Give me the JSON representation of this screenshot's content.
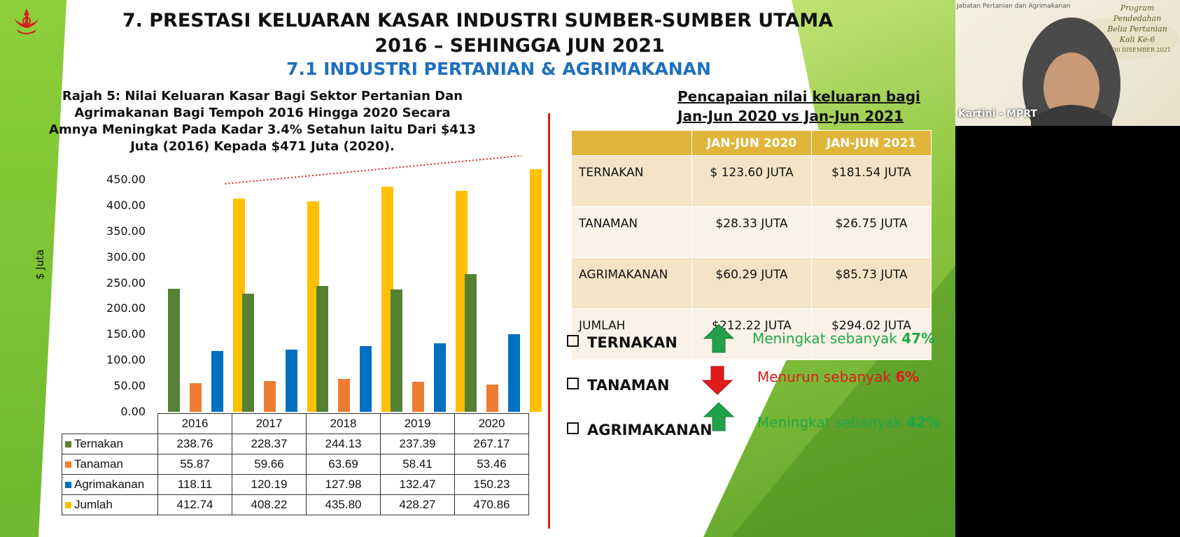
{
  "slide": {
    "title_line1": "7. PRESTASI KELUARAN KASAR INDUSTRI SUMBER-SUMBER UTAMA",
    "title_line2": "2016 – SEHINGGA JUN 2021",
    "subtitle": "7.1 INDUSTRI PERTANIAN & AGRIMAKANAN",
    "caption": "Rajah 5: Nilai Keluaran Kasar Bagi Sektor Pertanian Dan Agrimakanan Bagi Tempoh 2016 Hingga 2020 Secara Amnya Meningkat Pada Kadar 3.4% Setahun Iaitu Dari $413 Juta (2016) Kepada $471 Juta (2020)."
  },
  "chart_data": {
    "type": "bar",
    "ylabel": "$ Juta",
    "ylim": [
      0,
      500
    ],
    "yticks": [
      "0.00",
      "50.00",
      "100.00",
      "150.00",
      "200.00",
      "250.00",
      "300.00",
      "350.00",
      "400.00",
      "450.00"
    ],
    "categories": [
      "2016",
      "2017",
      "2018",
      "2019",
      "2020"
    ],
    "series": [
      {
        "name": "Ternakan",
        "color": "#548235",
        "values": [
          238.76,
          228.37,
          244.13,
          237.39,
          267.17
        ],
        "labels": [
          "238.76",
          "228.37",
          "244.13",
          "237.39",
          "267.17"
        ]
      },
      {
        "name": "Tanaman",
        "color": "#ed7d31",
        "values": [
          55.87,
          59.66,
          63.69,
          58.41,
          53.46
        ],
        "labels": [
          "55.87",
          "59.66",
          "63.69",
          "58.41",
          "53.46"
        ]
      },
      {
        "name": "Agrimakanan",
        "color": "#0070c0",
        "values": [
          118.11,
          120.19,
          127.98,
          132.47,
          150.23
        ],
        "labels": [
          "118.11",
          "120.19",
          "127.98",
          "132.47",
          "150.23"
        ]
      },
      {
        "name": "Jumlah",
        "color": "#ffc000",
        "values": [
          412.74,
          408.22,
          435.8,
          428.27,
          470.86
        ],
        "labels": [
          "412.74",
          "408.22",
          "435.80",
          "428.27",
          "470.86"
        ]
      }
    ],
    "trendline": {
      "series": "Jumlah",
      "color": "#e02020",
      "style": "dotted"
    }
  },
  "performance": {
    "title_line1": "Pencapaian nilai keluaran bagi",
    "title_line2": "Jan-Jun 2020 vs Jan-Jun 2021",
    "headers": [
      "",
      "JAN-JUN 2020",
      "JAN-JUN 2021"
    ],
    "rows": [
      {
        "label": "TERNAKAN",
        "v2020": "$ 123.60 JUTA",
        "v2021": "$181.54 JUTA"
      },
      {
        "label": "TANAMAN",
        "v2020": "$28.33  JUTA",
        "v2021": "$26.75 JUTA"
      },
      {
        "label": "AGRIMAKANAN",
        "v2020": "$60.29 JUTA",
        "v2021": "$85.73 JUTA"
      },
      {
        "label": "JUMLAH",
        "v2020": "$212.22 JUTA",
        "v2021": "$294.02 JUTA"
      }
    ],
    "summary": [
      {
        "label": "TERNAKAN",
        "direction": "up",
        "text": "Meningkat sebanyak",
        "pct": "47%",
        "color": "#1fa84a"
      },
      {
        "label": "TANAMAN",
        "direction": "down",
        "text": "Menurun sebanyak",
        "pct": "6%",
        "color": "#e01b1b"
      },
      {
        "label": "AGRIMAKANAN",
        "direction": "up",
        "text": "Meningkat sebanyak",
        "pct": "42%",
        "color": "#1fa84a"
      }
    ]
  },
  "video": {
    "participant_name": "Kartini - MPRT",
    "banner_line1": "Program Pendedahan",
    "banner_line2": "Belia Pertanian",
    "banner_line3": "Kali Ke-6",
    "banner_dates": "2 - 30 DISEMBER 2021"
  }
}
